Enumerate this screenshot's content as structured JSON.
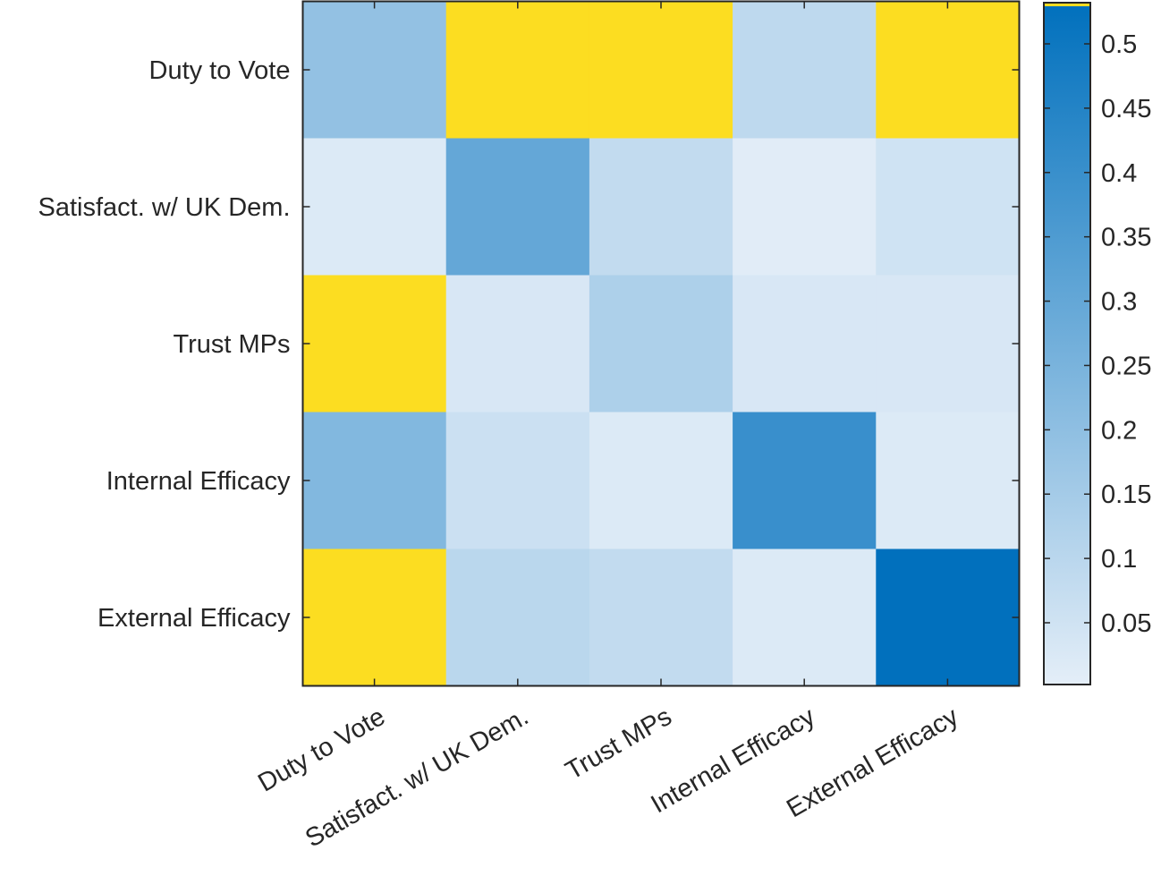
{
  "chart_data": {
    "type": "heatmap",
    "title": "",
    "xlabel": "",
    "ylabel": "",
    "x_categories": [
      "Duty to Vote",
      "Satisfact. w/ UK Dem.",
      "Trust MPs",
      "Internal Efficacy",
      "External Efficacy"
    ],
    "y_categories": [
      "Duty to Vote",
      "Satisfact. w/ UK Dem.",
      "Trust MPs",
      "Internal Efficacy",
      "External Efficacy"
    ],
    "values": [
      [
        0.19,
        null,
        null,
        0.09,
        null
      ],
      [
        0.02,
        0.3,
        0.08,
        0.01,
        0.05
      ],
      [
        null,
        0.03,
        0.13,
        0.03,
        0.03
      ],
      [
        0.23,
        0.06,
        0.02,
        0.4,
        0.02
      ],
      [
        null,
        0.1,
        0.08,
        0.02,
        0.53
      ]
    ],
    "masked_color": "#fcdd21",
    "colorbar": {
      "range": [
        0.002,
        0.532
      ],
      "ticks": [
        0.05,
        0.1,
        0.15,
        0.2,
        0.25,
        0.3,
        0.35,
        0.4,
        0.45,
        0.5
      ],
      "tick_labels": [
        "0.05",
        "0.1",
        "0.15",
        "0.2",
        "0.25",
        "0.3",
        "0.35",
        "0.4",
        "0.45",
        "0.5"
      ],
      "color_low": "#e4eef8",
      "color_high": "#0070bd"
    }
  }
}
